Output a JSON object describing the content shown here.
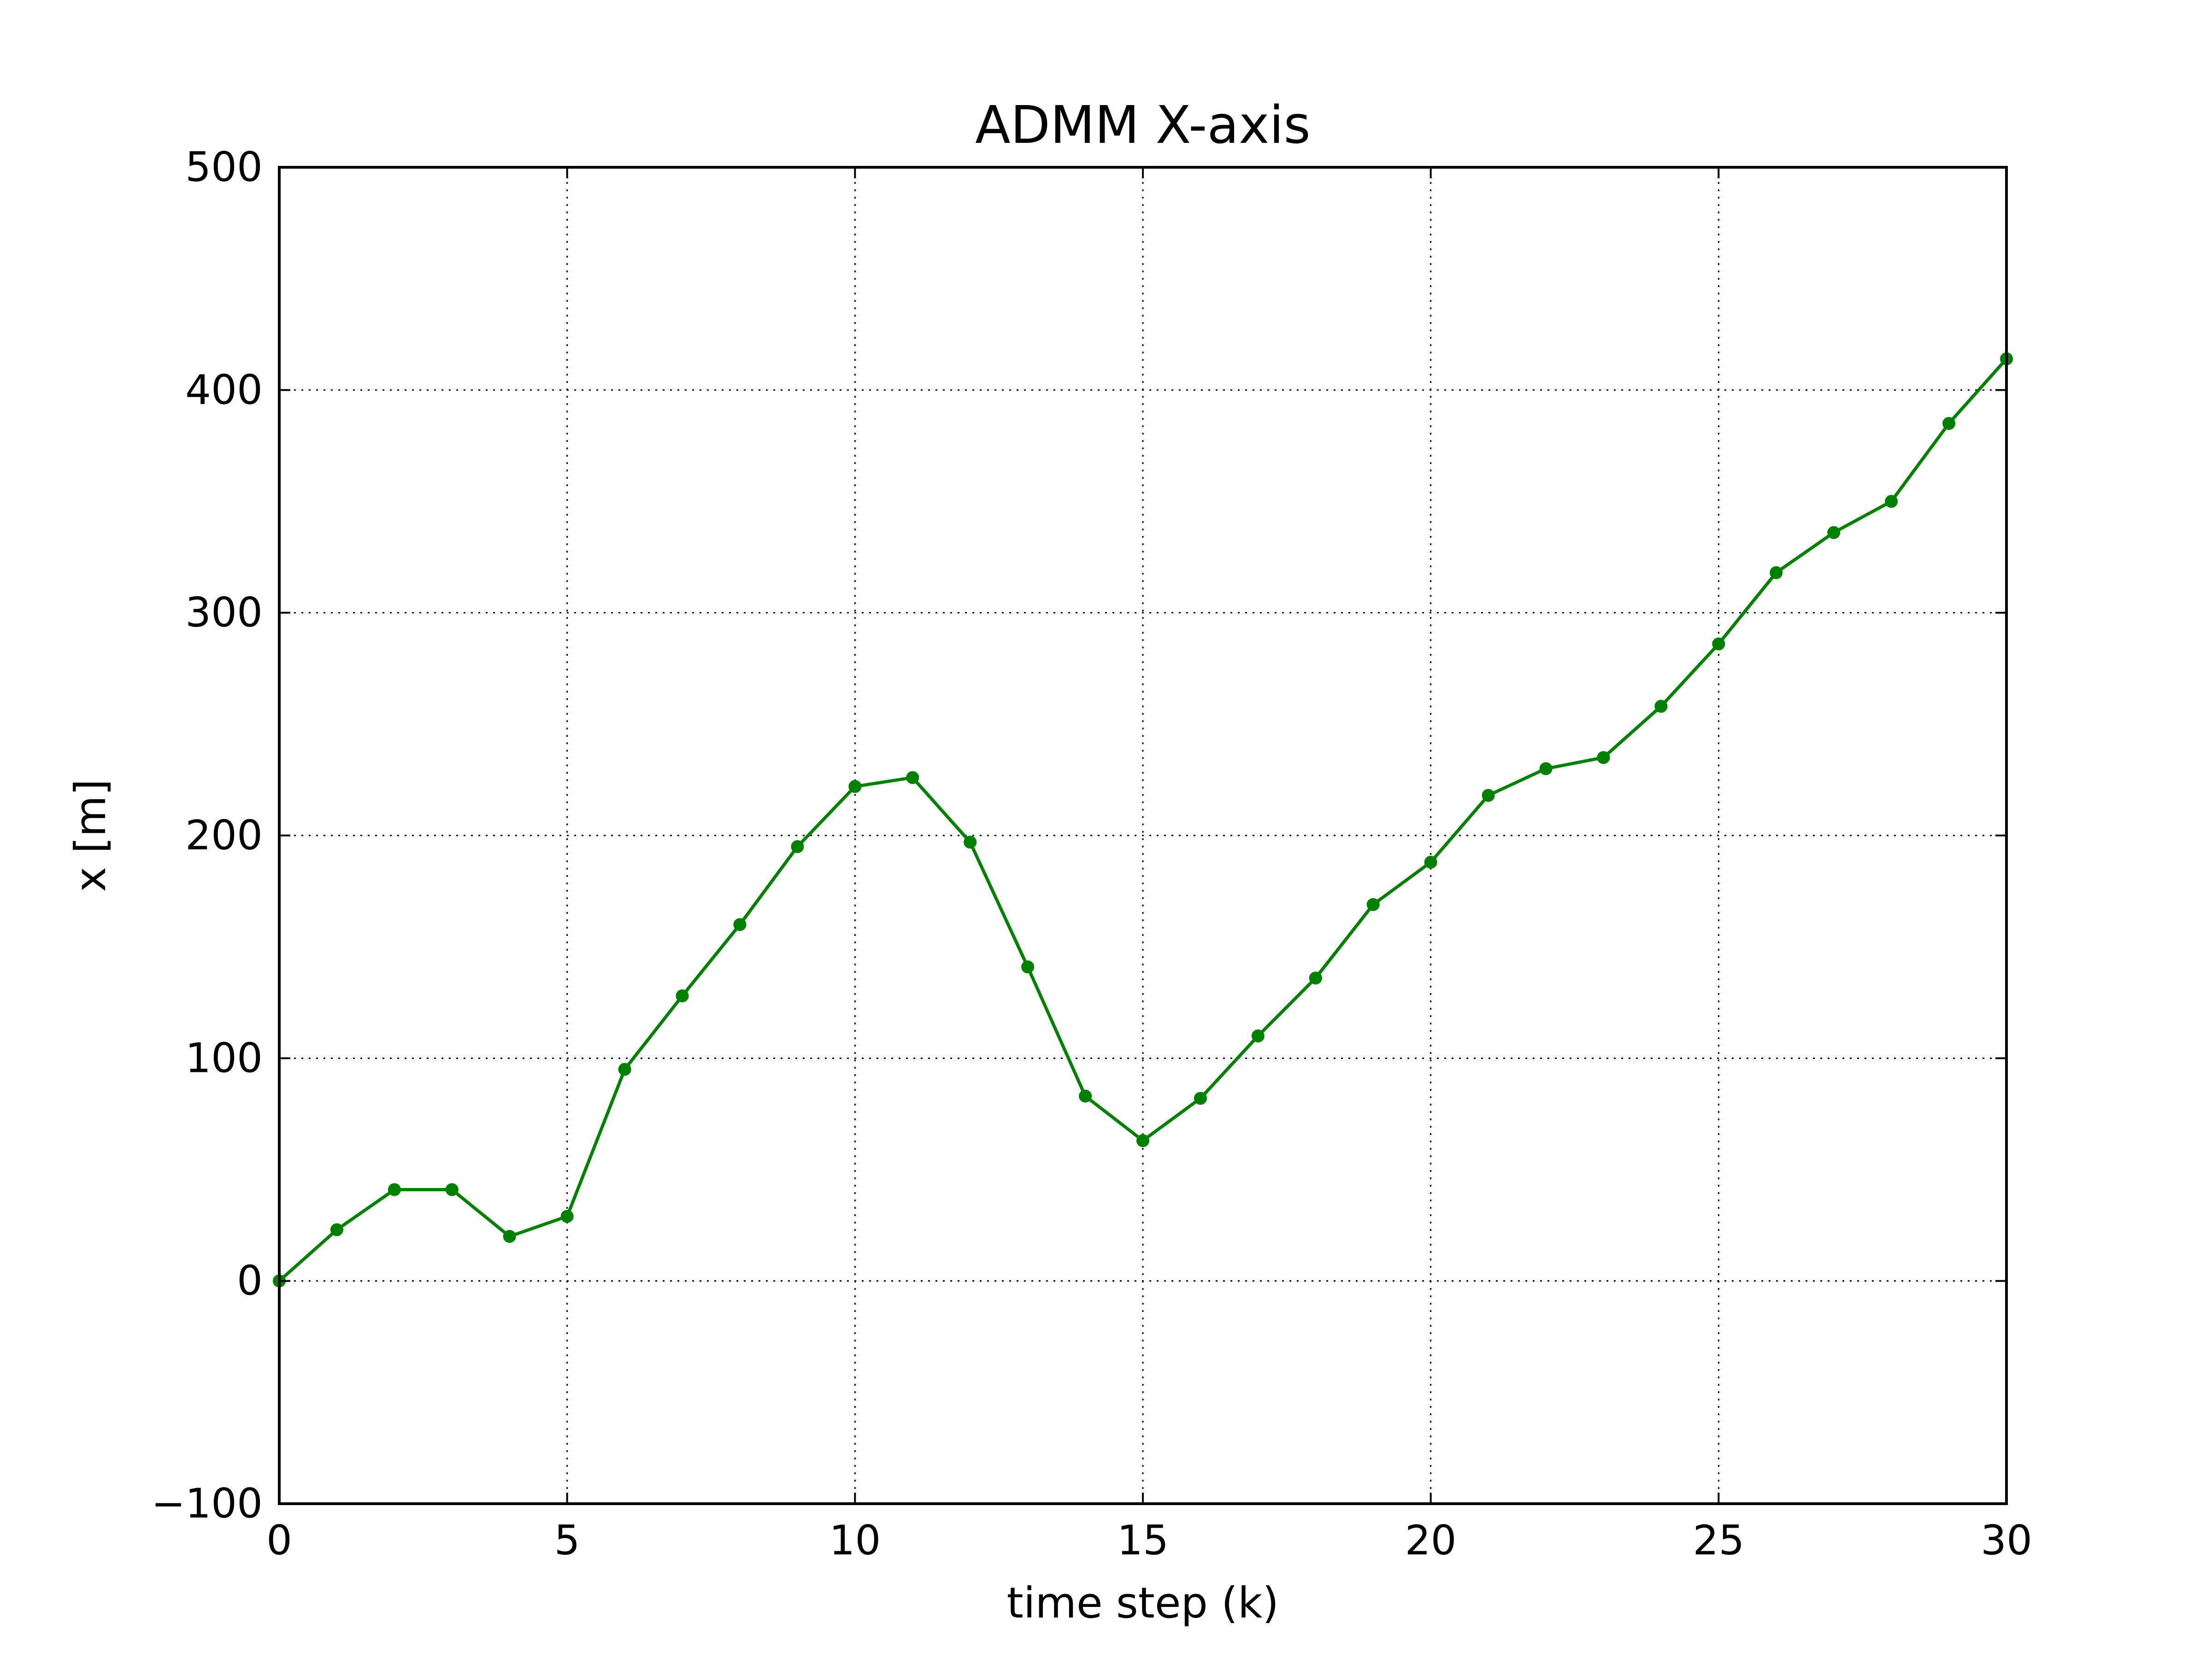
{
  "chart_data": {
    "type": "line",
    "title": "ADMM X-axis",
    "xlabel": "time step (k)",
    "ylabel": "x [m]",
    "xlim": [
      0,
      30
    ],
    "ylim": [
      -100,
      500
    ],
    "xticks": [
      0,
      5,
      10,
      15,
      20,
      25,
      30
    ],
    "yticks": [
      -100,
      0,
      100,
      200,
      300,
      400,
      500
    ],
    "xtick_labels": [
      "0",
      "5",
      "10",
      "15",
      "20",
      "25",
      "30"
    ],
    "ytick_labels": [
      "−100",
      "0",
      "100",
      "200",
      "300",
      "400",
      "500"
    ],
    "grid": true,
    "grid_style": "dotted",
    "legend": null,
    "series": [
      {
        "color": "#008000",
        "marker": "circle",
        "x": [
          0,
          1,
          2,
          3,
          4,
          5,
          6,
          7,
          8,
          9,
          10,
          11,
          12,
          13,
          14,
          15,
          16,
          17,
          18,
          19,
          20,
          21,
          22,
          23,
          24,
          25,
          26,
          27,
          28,
          29,
          30
        ],
        "y": [
          0,
          23,
          41,
          41,
          20,
          29,
          95,
          128,
          160,
          195,
          222,
          226,
          197,
          141,
          83,
          63,
          82,
          110,
          136,
          169,
          188,
          218,
          230,
          235,
          258,
          286,
          318,
          336,
          350,
          385,
          414
        ]
      }
    ]
  }
}
